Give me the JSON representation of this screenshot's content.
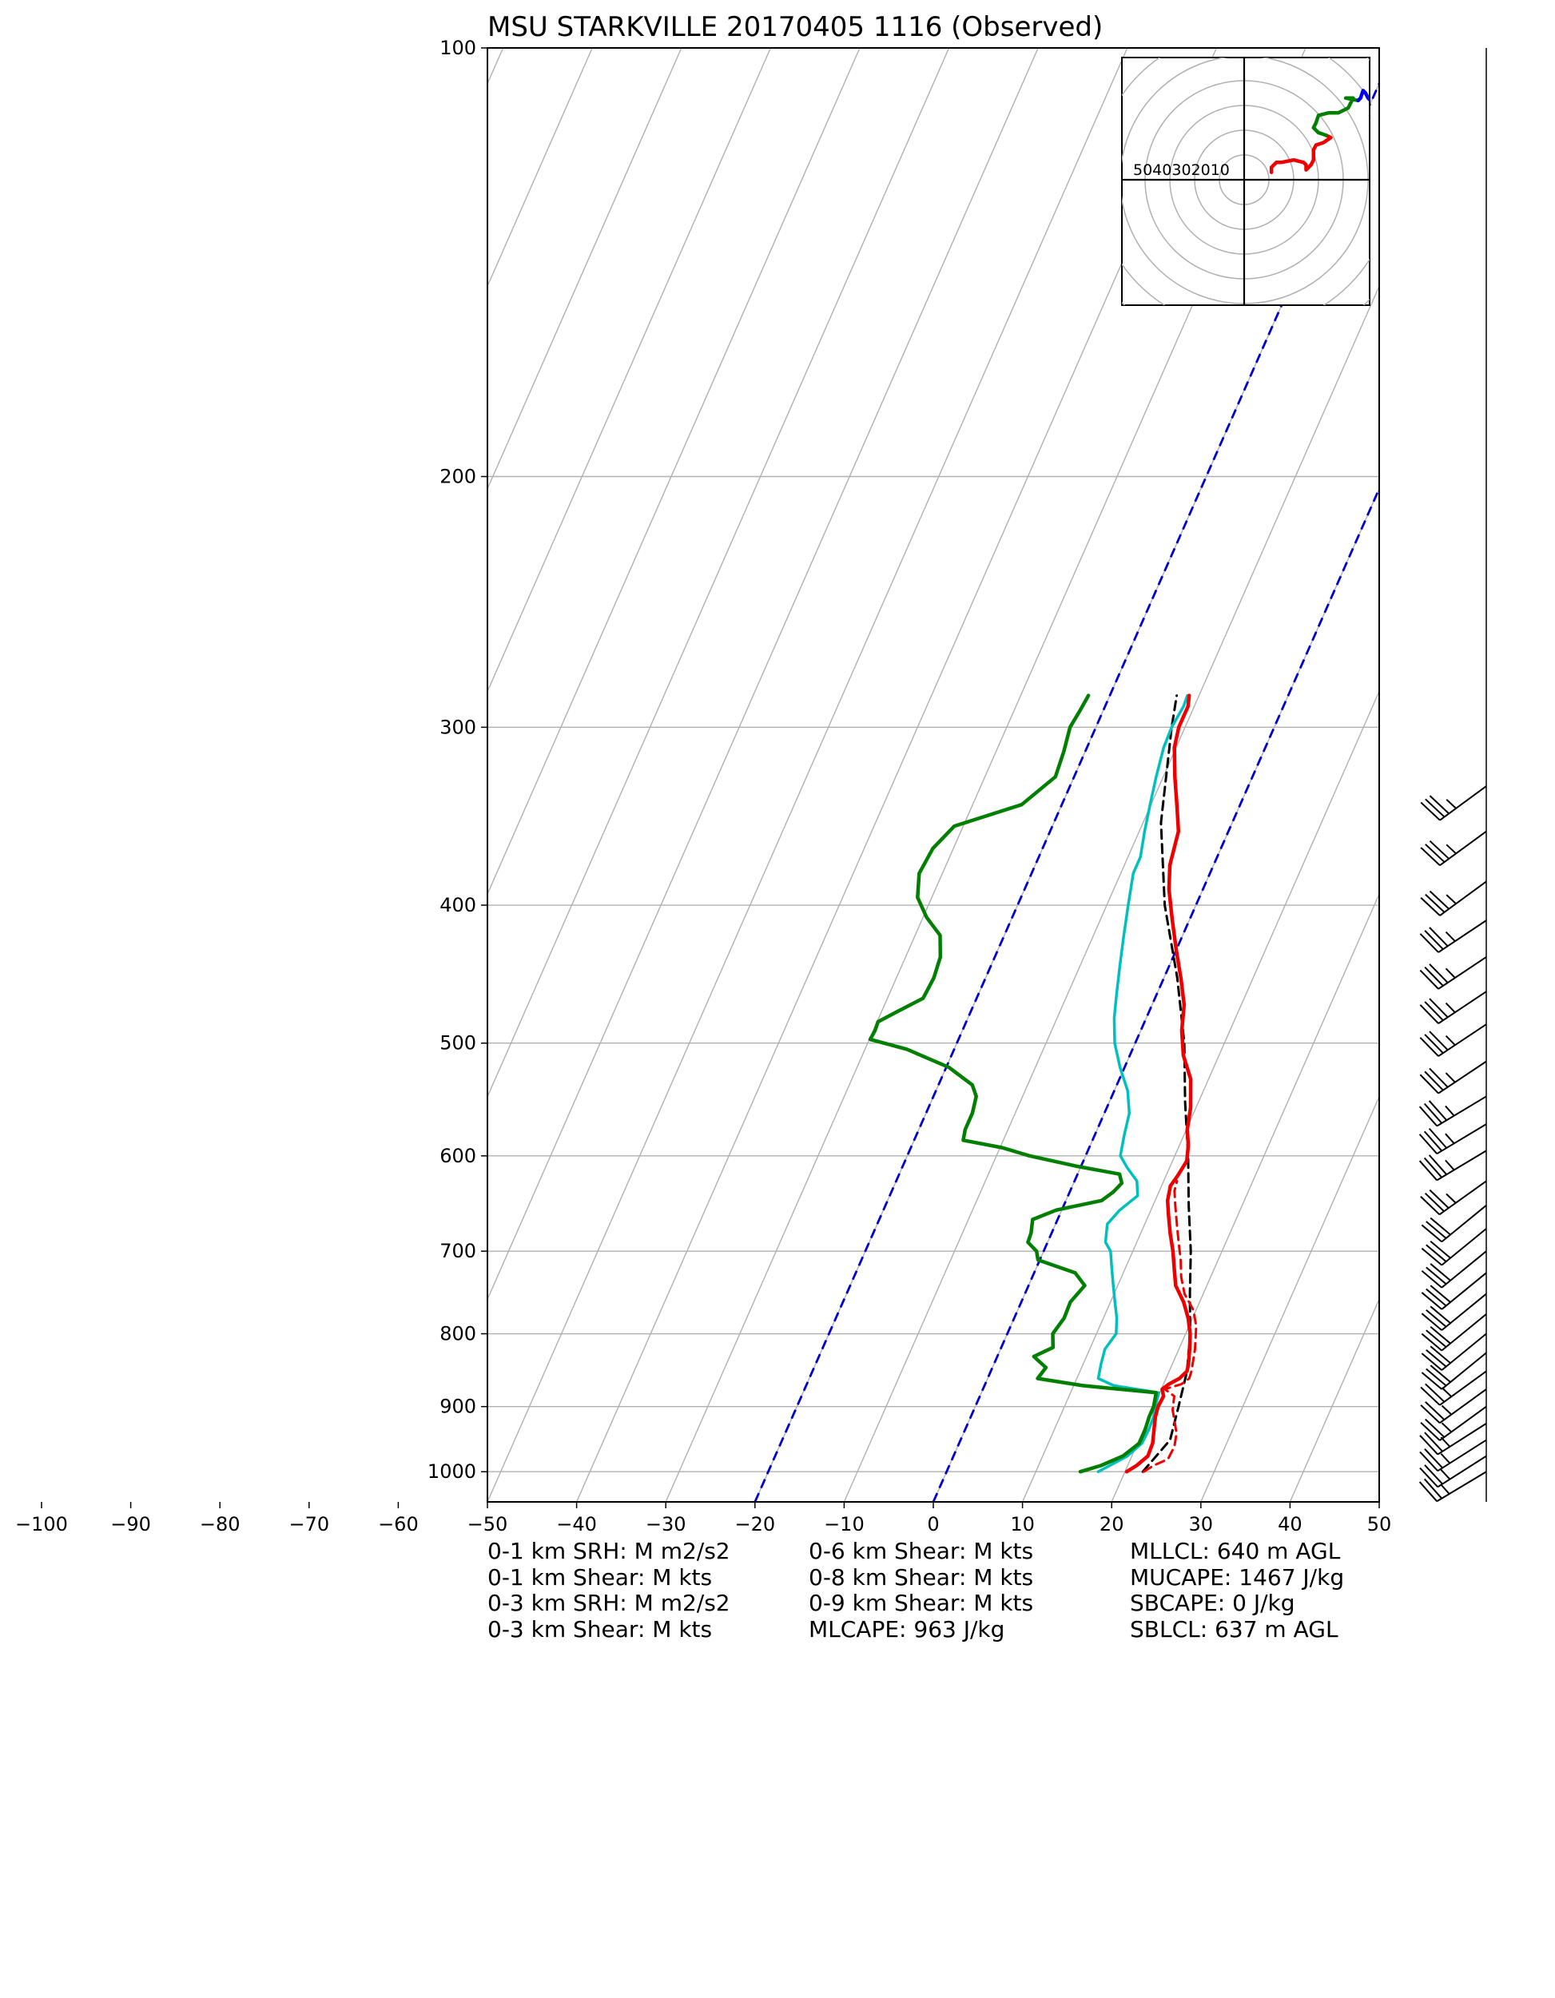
{
  "chart_data": {
    "type": "line",
    "subtype": "skew-t log-p sounding",
    "title": "MSU STARKVILLE 20170405 1116   (Observed)",
    "xlabel": "",
    "ylabel": "",
    "xlim": [
      -50,
      50
    ],
    "ylim": [
      1050,
      100
    ],
    "y_scale": "log",
    "grid": true,
    "x_ticks": [
      -100,
      -90,
      -80,
      -70,
      -60,
      -50,
      -40,
      -30,
      -20,
      -10,
      0,
      10,
      20,
      30,
      40,
      50
    ],
    "y_ticks": [
      100,
      200,
      300,
      400,
      500,
      600,
      700,
      800,
      900,
      1000
    ],
    "colors": {
      "temperature": "#ee0000",
      "dewpoint": "#007f00",
      "wetbulb": "#00bfbf",
      "parcel": "#000000",
      "reference_isotherm": "#0000cc",
      "grid": "#b0b0b0",
      "hodograph_low": "#ee0000",
      "hodograph_mid": "#007f00",
      "hodograph_high": "#0000ee"
    },
    "series": [
      {
        "id": "temperature",
        "style": "solid",
        "points": [
          [
            1000,
            20.2
          ],
          [
            990,
            21.0
          ],
          [
            975,
            21.8
          ],
          [
            955,
            21.7
          ],
          [
            935,
            21.2
          ],
          [
            915,
            20.7
          ],
          [
            900,
            20.5
          ],
          [
            885,
            20.6
          ],
          [
            875,
            20.1
          ],
          [
            868,
            20.6
          ],
          [
            860,
            21.5
          ],
          [
            850,
            22.0
          ],
          [
            840,
            21.8
          ],
          [
            820,
            21.2
          ],
          [
            800,
            20.5
          ],
          [
            780,
            19.5
          ],
          [
            760,
            18.2
          ],
          [
            740,
            16.5
          ],
          [
            720,
            15.5
          ],
          [
            700,
            14.5
          ],
          [
            680,
            13.3
          ],
          [
            660,
            12.2
          ],
          [
            645,
            11.4
          ],
          [
            630,
            11.0
          ],
          [
            620,
            11.3
          ],
          [
            605,
            11.6
          ],
          [
            590,
            11.0
          ],
          [
            575,
            10.1
          ],
          [
            555,
            9.4
          ],
          [
            530,
            8.0
          ],
          [
            510,
            6.0
          ],
          [
            490,
            4.6
          ],
          [
            470,
            3.6
          ],
          [
            450,
            1.9
          ],
          [
            430,
            0.0
          ],
          [
            410,
            -1.9
          ],
          [
            390,
            -3.8
          ],
          [
            375,
            -4.9
          ],
          [
            355,
            -5.6
          ],
          [
            340,
            -7.1
          ],
          [
            325,
            -8.7
          ],
          [
            310,
            -10.2
          ],
          [
            300,
            -10.7
          ],
          [
            290,
            -10.7
          ],
          [
            285,
            -11.1
          ]
        ]
      },
      {
        "id": "temperature_virtual",
        "style": "dashed",
        "points": [
          [
            1000,
            22.1
          ],
          [
            990,
            22.9
          ],
          [
            980,
            24.2
          ],
          [
            960,
            24.3
          ],
          [
            940,
            23.9
          ],
          [
            920,
            23.0
          ],
          [
            905,
            22.3
          ],
          [
            885,
            21.8
          ],
          [
            875,
            20.4
          ],
          [
            868,
            22.0
          ],
          [
            860,
            22.6
          ],
          [
            850,
            22.5
          ],
          [
            820,
            21.8
          ],
          [
            790,
            20.8
          ],
          [
            770,
            19.7
          ],
          [
            750,
            17.9
          ],
          [
            730,
            16.7
          ],
          [
            710,
            15.8
          ],
          [
            690,
            14.7
          ],
          [
            670,
            13.6
          ],
          [
            650,
            12.5
          ],
          [
            635,
            11.7
          ],
          [
            625,
            11.5
          ]
        ]
      },
      {
        "id": "wetbulb",
        "style": "solid",
        "points": [
          [
            1000,
            17.0
          ],
          [
            990,
            18.0
          ],
          [
            975,
            19.5
          ],
          [
            955,
            20.5
          ],
          [
            935,
            20.6
          ],
          [
            915,
            20.5
          ],
          [
            900,
            20.2
          ],
          [
            880,
            19.9
          ],
          [
            870,
            14.5
          ],
          [
            860,
            12.4
          ],
          [
            840,
            12.0
          ],
          [
            820,
            11.7
          ],
          [
            800,
            12.2
          ],
          [
            780,
            11.5
          ],
          [
            760,
            10.5
          ],
          [
            740,
            9.5
          ],
          [
            720,
            8.5
          ],
          [
            700,
            7.5
          ],
          [
            690,
            6.5
          ],
          [
            670,
            5.8
          ],
          [
            655,
            6.5
          ],
          [
            640,
            7.8
          ],
          [
            625,
            7.0
          ],
          [
            612,
            5.3
          ],
          [
            600,
            3.9
          ],
          [
            580,
            3.3
          ],
          [
            560,
            2.8
          ],
          [
            540,
            1.5
          ],
          [
            520,
            -0.5
          ],
          [
            500,
            -2.3
          ],
          [
            480,
            -3.6
          ],
          [
            460,
            -4.6
          ],
          [
            440,
            -5.6
          ],
          [
            420,
            -6.6
          ],
          [
            400,
            -7.6
          ],
          [
            380,
            -8.6
          ],
          [
            370,
            -8.6
          ],
          [
            355,
            -9.4
          ],
          [
            340,
            -10.1
          ],
          [
            325,
            -10.8
          ],
          [
            310,
            -11.4
          ],
          [
            300,
            -11.5
          ],
          [
            290,
            -11.2
          ],
          [
            285,
            -11.3
          ]
        ]
      },
      {
        "id": "dewpoint",
        "style": "solid",
        "points": [
          [
            1000,
            15.0
          ],
          [
            990,
            17.0
          ],
          [
            975,
            19.0
          ],
          [
            955,
            20.2
          ],
          [
            935,
            20.2
          ],
          [
            915,
            20.0
          ],
          [
            900,
            20.0
          ],
          [
            880,
            19.6
          ],
          [
            870,
            11.0
          ],
          [
            860,
            5.6
          ],
          [
            845,
            6.0
          ],
          [
            830,
            4.1
          ],
          [
            818,
            5.8
          ],
          [
            800,
            5.1
          ],
          [
            780,
            5.6
          ],
          [
            760,
            5.5
          ],
          [
            740,
            6.3
          ],
          [
            725,
            4.6
          ],
          [
            710,
            -0.2
          ],
          [
            700,
            -0.8
          ],
          [
            690,
            -2.2
          ],
          [
            680,
            -2.3
          ],
          [
            665,
            -2.8
          ],
          [
            655,
            -0.6
          ],
          [
            645,
            4.0
          ],
          [
            636,
            4.9
          ],
          [
            627,
            5.4
          ],
          [
            618,
            4.7
          ],
          [
            610,
            -0.6
          ],
          [
            600,
            -6.3
          ],
          [
            592,
            -9.8
          ],
          [
            585,
            -14.5
          ],
          [
            575,
            -14.8
          ],
          [
            560,
            -14.8
          ],
          [
            545,
            -15.2
          ],
          [
            535,
            -16.2
          ],
          [
            520,
            -19.7
          ],
          [
            505,
            -25.3
          ],
          [
            497,
            -29.9
          ],
          [
            490,
            -29.8
          ],
          [
            483,
            -29.9
          ],
          [
            475,
            -28.2
          ],
          [
            465,
            -26.0
          ],
          [
            450,
            -25.8
          ],
          [
            435,
            -26.1
          ],
          [
            420,
            -27.2
          ],
          [
            408,
            -29.6
          ],
          [
            395,
            -31.6
          ],
          [
            380,
            -32.6
          ],
          [
            365,
            -32.3
          ],
          [
            352,
            -31.0
          ],
          [
            340,
            -24.5
          ],
          [
            325,
            -22.1
          ],
          [
            312,
            -22.4
          ],
          [
            300,
            -22.9
          ],
          [
            292,
            -22.6
          ],
          [
            285,
            -22.4
          ]
        ]
      },
      {
        "id": "parcel",
        "style": "dashed",
        "points": [
          [
            1000,
            22.0
          ],
          [
            950,
            23.5
          ],
          [
            900,
            22.8
          ],
          [
            850,
            22.0
          ],
          [
            800,
            20.5
          ],
          [
            750,
            18.5
          ],
          [
            700,
            16.5
          ],
          [
            650,
            14.0
          ],
          [
            600,
            11.5
          ],
          [
            550,
            8.5
          ],
          [
            500,
            5.5
          ],
          [
            450,
            1.5
          ],
          [
            400,
            -3.5
          ],
          [
            350,
            -8.0
          ],
          [
            300,
            -11.5
          ],
          [
            285,
            -12.5
          ]
        ]
      }
    ],
    "reference_lines": [
      {
        "id": "isotherm-0",
        "label": "0 °C isotherm",
        "style": "dashed",
        "points": [
          [
            1050,
            0
          ],
          [
            100,
            0
          ]
        ]
      },
      {
        "id": "isotherm-minus20",
        "label": "-20 °C isotherm",
        "style": "dashed",
        "points": [
          [
            1050,
            -20
          ],
          [
            100,
            -20
          ]
        ]
      }
    ],
    "wind_barbs": [
      {
        "p": 330,
        "u": 30,
        "v": 22
      },
      {
        "p": 355,
        "u": 30,
        "v": 22
      },
      {
        "p": 385,
        "u": 30,
        "v": 22
      },
      {
        "p": 410,
        "u": 30,
        "v": 20
      },
      {
        "p": 435,
        "u": 30,
        "v": 20
      },
      {
        "p": 460,
        "u": 30,
        "v": 20
      },
      {
        "p": 485,
        "u": 30,
        "v": 20
      },
      {
        "p": 515,
        "u": 30,
        "v": 20
      },
      {
        "p": 545,
        "u": 30,
        "v": 18
      },
      {
        "p": 570,
        "u": 30,
        "v": 18
      },
      {
        "p": 595,
        "u": 30,
        "v": 18
      },
      {
        "p": 625,
        "u": 28,
        "v": 20
      },
      {
        "p": 650,
        "u": 22,
        "v": 18
      },
      {
        "p": 675,
        "u": 22,
        "v": 18
      },
      {
        "p": 700,
        "u": 22,
        "v": 18
      },
      {
        "p": 725,
        "u": 22,
        "v": 18
      },
      {
        "p": 750,
        "u": 22,
        "v": 18
      },
      {
        "p": 775,
        "u": 22,
        "v": 18
      },
      {
        "p": 800,
        "u": 22,
        "v": 18
      },
      {
        "p": 825,
        "u": 22,
        "v": 18
      },
      {
        "p": 850,
        "u": 22,
        "v": 16
      },
      {
        "p": 875,
        "u": 22,
        "v": 16
      },
      {
        "p": 900,
        "u": 22,
        "v": 16
      },
      {
        "p": 925,
        "u": 22,
        "v": 14
      },
      {
        "p": 950,
        "u": 22,
        "v": 14
      },
      {
        "p": 975,
        "u": 22,
        "v": 14
      },
      {
        "p": 1000,
        "u": 20,
        "v": 12
      }
    ],
    "hodograph": {
      "rings": [
        10,
        20,
        30,
        40,
        50,
        60,
        70,
        80
      ],
      "ring_labels": [
        "50",
        "40",
        "30",
        "20",
        "10"
      ],
      "ranges": [
        50,
        50
      ],
      "segments": [
        {
          "id": "low",
          "points": [
            [
              11,
              3
            ],
            [
              11,
              5
            ],
            [
              13,
              7
            ],
            [
              15,
              7
            ],
            [
              20,
              8
            ],
            [
              24,
              7
            ],
            [
              25,
              6
            ],
            [
              25,
              4
            ],
            [
              27,
              6
            ],
            [
              28,
              8
            ],
            [
              28,
              12
            ],
            [
              29,
              14
            ],
            [
              32,
              15
            ],
            [
              35,
              17
            ],
            [
              33,
              18
            ]
          ]
        },
        {
          "id": "mid",
          "points": [
            [
              33,
              18
            ],
            [
              30,
              19
            ],
            [
              28,
              21
            ],
            [
              29,
              23
            ],
            [
              30,
              26
            ],
            [
              34,
              27
            ],
            [
              38,
              27
            ],
            [
              40,
              28
            ],
            [
              42,
              29
            ],
            [
              43,
              31
            ],
            [
              44,
              33
            ],
            [
              41,
              33
            ],
            [
              46,
              32
            ]
          ]
        },
        {
          "id": "high",
          "points": [
            [
              46,
              32
            ],
            [
              47,
              33
            ],
            [
              48,
              36
            ],
            [
              49,
              35
            ],
            [
              50,
              33
            ],
            [
              52,
              31
            ],
            [
              53,
              29
            ],
            [
              52,
              27
            ],
            [
              51,
              26
            ],
            [
              52,
              24
            ],
            [
              54,
              23
            ]
          ]
        }
      ]
    }
  },
  "stats": {
    "col1": [
      "0-1 km SRH: M m2/s2",
      "0-1 km Shear: M kts",
      "0-3 km SRH: M m2/s2",
      "0-3 km Shear: M kts"
    ],
    "col2": [
      "0-6 km Shear: M kts",
      "0-8 km Shear: M kts",
      "0-9 km Shear: M kts",
      "MLCAPE: 963 J/kg"
    ],
    "col3": [
      "MLLCL: 640 m AGL",
      "MUCAPE: 1467 J/kg",
      "SBCAPE: 0 J/kg",
      "SBLCL: 637 m AGL"
    ]
  }
}
